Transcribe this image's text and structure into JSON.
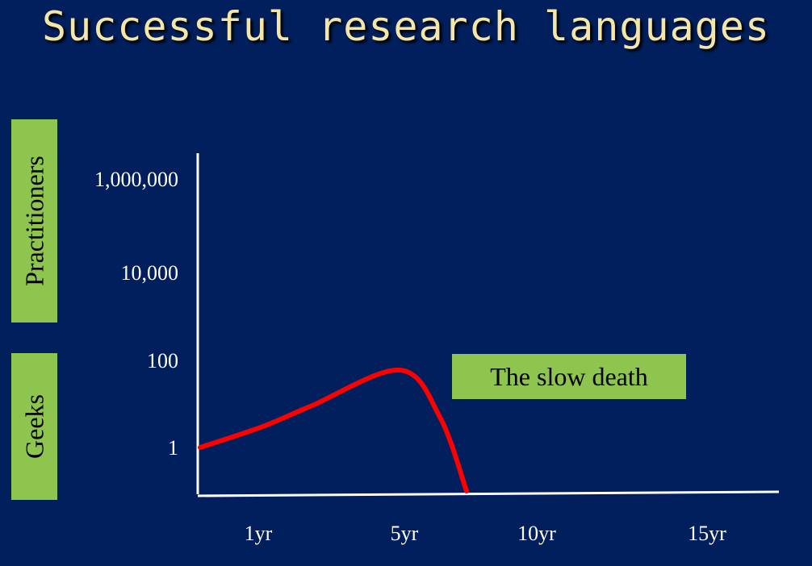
{
  "title": "Successful research languages",
  "ylabel_upper": "Practitioners",
  "ylabel_lower": "Geeks",
  "annotation": "The slow death",
  "colors": {
    "background": "#001f5c",
    "curve": "#ff0000",
    "label_box": "#8dc54f",
    "title": "#f5e6a8"
  },
  "chart_data": {
    "type": "line",
    "title": "Successful research languages",
    "ylabel": [
      "Geeks",
      "Practitioners"
    ],
    "yscale": "log",
    "y_tick_labels": [
      "1",
      "100",
      "10,000",
      "1,000,000"
    ],
    "x_tick_labels": [
      "1yr",
      "5yr",
      "10yr",
      "15yr"
    ],
    "series": [
      {
        "name": "",
        "color": "#ff0000",
        "points": [
          {
            "x": 0.0,
            "y": 1
          },
          {
            "x": 1.4,
            "y": 3
          },
          {
            "x": 2.5,
            "y": 9
          },
          {
            "x": 4.5,
            "y": 60
          },
          {
            "x": 5.4,
            "y": 5
          },
          {
            "x": 6.0,
            "y": 0.1
          }
        ]
      }
    ],
    "annotations": [
      "The slow death"
    ]
  }
}
